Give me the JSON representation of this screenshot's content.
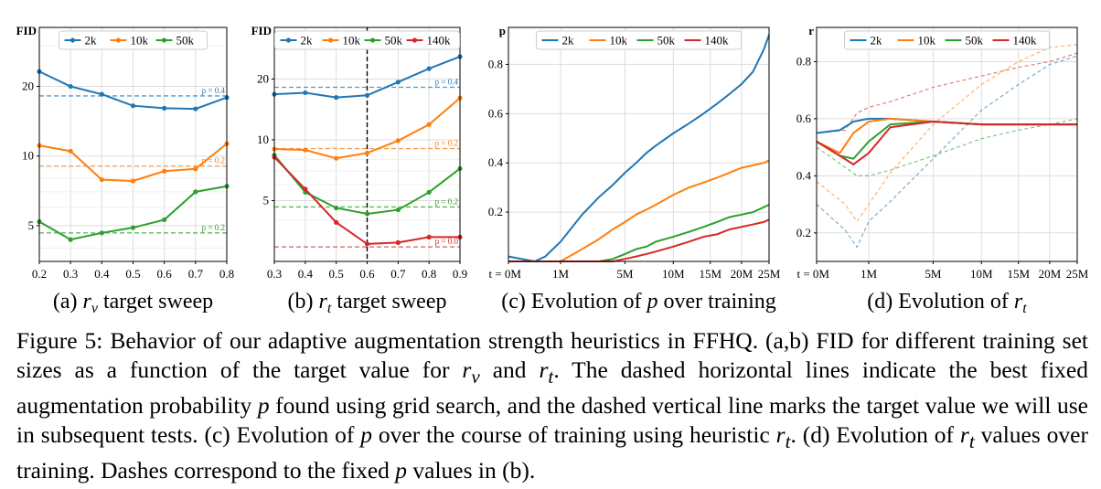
{
  "colors": {
    "2k": "#1f77b4",
    "10k": "#ff7f0e",
    "50k": "#2ca02c",
    "140k": "#d62728",
    "grid": "#dddddd",
    "axis": "#000000"
  },
  "chart_data": [
    {
      "id": "a",
      "type": "line",
      "title": "",
      "ylabel": "FID",
      "xlabel": "",
      "x": [
        0.2,
        0.3,
        0.4,
        0.5,
        0.6,
        0.7,
        0.8
      ],
      "x_ticks": [
        "0.2",
        "0.3",
        "0.4",
        "0.5",
        "0.6",
        "0.7",
        "0.8"
      ],
      "xlim": [
        0.2,
        0.8
      ],
      "yscale": "log",
      "ylim": [
        3.5,
        36
      ],
      "y_ticks": [
        "5",
        "10",
        "20"
      ],
      "y_tick_values": [
        5,
        10,
        20
      ],
      "legend": "top-center",
      "grid": true,
      "series": [
        {
          "name": "2k",
          "values": [
            23.2,
            20.0,
            18.5,
            16.5,
            16.1,
            16.0,
            17.9
          ]
        },
        {
          "name": "10k",
          "values": [
            11.1,
            10.5,
            7.9,
            7.8,
            8.6,
            8.8,
            11.3
          ]
        },
        {
          "name": "50k",
          "values": [
            5.2,
            4.35,
            4.65,
            4.9,
            5.3,
            7.0,
            7.4
          ]
        }
      ],
      "reference_lines": [
        {
          "series": "2k",
          "value": 18.2,
          "label": "p = 0.4"
        },
        {
          "series": "10k",
          "value": 9.05,
          "label": "p = 0.2"
        },
        {
          "series": "50k",
          "value": 4.65,
          "label": "p = 0.2"
        }
      ],
      "caption_prefix": "(a) ",
      "caption_var": "r",
      "caption_sub": "v",
      "caption_suffix": " target sweep"
    },
    {
      "id": "b",
      "type": "line",
      "title": "",
      "ylabel": "FID",
      "xlabel": "",
      "x": [
        0.3,
        0.4,
        0.5,
        0.6,
        0.7,
        0.8,
        0.9
      ],
      "x_ticks": [
        "0.3",
        "0.4",
        "0.5",
        "0.6",
        "0.7",
        "0.8",
        "0.9"
      ],
      "xlim": [
        0.3,
        0.9
      ],
      "yscale": "log",
      "ylim": [
        2.5,
        36
      ],
      "y_ticks": [
        "5",
        "10",
        "20"
      ],
      "y_tick_values": [
        5,
        10,
        20
      ],
      "legend": "top-center",
      "grid": true,
      "vertical_line": 0.6,
      "series": [
        {
          "name": "2k",
          "values": [
            16.8,
            17.1,
            16.2,
            16.6,
            19.3,
            22.5,
            25.8
          ]
        },
        {
          "name": "10k",
          "values": [
            9.0,
            8.9,
            8.1,
            8.6,
            9.9,
            11.9,
            16.1
          ]
        },
        {
          "name": "50k",
          "values": [
            8.4,
            5.5,
            4.6,
            4.3,
            4.5,
            5.5,
            7.2
          ]
        },
        {
          "name": "140k",
          "values": [
            8.2,
            5.7,
            3.9,
            3.05,
            3.1,
            3.3,
            3.3
          ]
        }
      ],
      "reference_lines": [
        {
          "series": "2k",
          "value": 18.2,
          "label": "p = 0.4"
        },
        {
          "series": "10k",
          "value": 9.05,
          "label": "p = 0.2"
        },
        {
          "series": "50k",
          "value": 4.65,
          "label": "p = 0.2"
        },
        {
          "series": "140k",
          "value": 2.95,
          "label": "p = 0.0"
        }
      ],
      "caption_prefix": "(b) ",
      "caption_var": "r",
      "caption_sub": "t",
      "caption_suffix": " target sweep"
    },
    {
      "id": "c",
      "type": "line",
      "title": "",
      "ylabel": "p",
      "xlabel": "",
      "xscale": "sqrt",
      "xlim": [
        0,
        25
      ],
      "x_ticks": [
        "t = 0M",
        "1M",
        "5M",
        "10M",
        "15M",
        "20M",
        "25M"
      ],
      "x_tick_values": [
        0,
        1,
        5,
        10,
        15,
        20,
        25
      ],
      "ylim": [
        0,
        0.95
      ],
      "y_ticks": [
        "0.2",
        "0.4",
        "0.6",
        "0.8"
      ],
      "y_tick_values": [
        0.2,
        0.4,
        0.6,
        0.8
      ],
      "legend": "top-center",
      "grid": true,
      "series": [
        {
          "name": "2k",
          "x": [
            0,
            0.25,
            0.5,
            1,
            2,
            3,
            4,
            5,
            6,
            7,
            8,
            10,
            12,
            14,
            16,
            18,
            20,
            22,
            24,
            25
          ],
          "values": [
            0.02,
            0.0,
            0.02,
            0.08,
            0.19,
            0.26,
            0.31,
            0.36,
            0.4,
            0.44,
            0.47,
            0.52,
            0.56,
            0.6,
            0.64,
            0.68,
            0.72,
            0.77,
            0.86,
            0.92
          ]
        },
        {
          "name": "10k",
          "x": [
            0,
            0.5,
            1,
            2,
            3,
            4,
            5,
            6,
            7,
            8,
            10,
            12,
            14,
            16,
            18,
            20,
            22,
            24,
            25
          ],
          "values": [
            0.0,
            0.0,
            0.0,
            0.05,
            0.09,
            0.13,
            0.16,
            0.19,
            0.21,
            0.23,
            0.27,
            0.3,
            0.32,
            0.34,
            0.36,
            0.38,
            0.39,
            0.4,
            0.41
          ]
        },
        {
          "name": "50k",
          "x": [
            0,
            1,
            2,
            3,
            4,
            5,
            6,
            7,
            8,
            10,
            12,
            14,
            16,
            18,
            20,
            22,
            24,
            25
          ],
          "values": [
            0.0,
            0.0,
            0.0,
            0.0,
            0.01,
            0.03,
            0.05,
            0.06,
            0.08,
            0.1,
            0.12,
            0.14,
            0.16,
            0.18,
            0.19,
            0.2,
            0.22,
            0.23
          ]
        },
        {
          "name": "140k",
          "x": [
            0,
            1,
            2,
            3,
            4,
            5,
            6,
            7,
            8,
            10,
            12,
            14,
            16,
            18,
            20,
            22,
            24,
            25
          ],
          "values": [
            0.0,
            0.0,
            0.0,
            0.0,
            0.0,
            0.01,
            0.02,
            0.03,
            0.04,
            0.06,
            0.08,
            0.1,
            0.11,
            0.13,
            0.14,
            0.15,
            0.16,
            0.17
          ]
        }
      ],
      "caption_prefix": "(c) Evolution of ",
      "caption_var": "p",
      "caption_sub": "",
      "caption_suffix": " over training"
    },
    {
      "id": "d",
      "type": "line",
      "title": "",
      "ylabel": "r",
      "xlabel": "",
      "xscale": "sqrt",
      "xlim": [
        0,
        25
      ],
      "x_ticks": [
        "t = 0M",
        "1M",
        "5M",
        "10M",
        "15M",
        "20M",
        "25M"
      ],
      "x_tick_values": [
        0,
        1,
        5,
        10,
        15,
        20,
        25
      ],
      "ylim": [
        0.1,
        0.92
      ],
      "y_ticks": [
        "0.2",
        "0.4",
        "0.6",
        "0.8"
      ],
      "y_tick_values": [
        0.2,
        0.4,
        0.6,
        0.8
      ],
      "legend": "top-center",
      "grid": true,
      "series": [
        {
          "name": "2k",
          "x": [
            0,
            0.2,
            0.5,
            1,
            2,
            5,
            10,
            15,
            20,
            25
          ],
          "values": [
            0.55,
            0.56,
            0.59,
            0.6,
            0.6,
            0.59,
            0.58,
            0.58,
            0.58,
            0.58
          ]
        },
        {
          "name": "10k",
          "x": [
            0,
            0.2,
            0.5,
            1,
            2,
            5,
            10,
            15,
            20,
            25
          ],
          "values": [
            0.52,
            0.48,
            0.55,
            0.59,
            0.6,
            0.59,
            0.58,
            0.58,
            0.58,
            0.58
          ]
        },
        {
          "name": "50k",
          "x": [
            0,
            0.2,
            0.5,
            1,
            2,
            5,
            10,
            15,
            20,
            25
          ],
          "values": [
            0.52,
            0.47,
            0.46,
            0.52,
            0.58,
            0.59,
            0.58,
            0.58,
            0.58,
            0.58
          ]
        },
        {
          "name": "140k",
          "x": [
            0,
            0.2,
            0.5,
            1,
            2,
            5,
            10,
            15,
            20,
            25
          ],
          "values": [
            0.52,
            0.47,
            0.44,
            0.48,
            0.57,
            0.59,
            0.58,
            0.58,
            0.58,
            0.58
          ]
        }
      ],
      "dashed_series": [
        {
          "name": "2k",
          "x": [
            0,
            0.3,
            0.6,
            1,
            2,
            5,
            10,
            15,
            20,
            25
          ],
          "values": [
            0.3,
            0.21,
            0.15,
            0.24,
            0.31,
            0.46,
            0.63,
            0.72,
            0.79,
            0.82
          ]
        },
        {
          "name": "10k",
          "x": [
            0,
            0.3,
            0.6,
            1,
            2,
            5,
            10,
            15,
            20,
            25
          ],
          "values": [
            0.38,
            0.3,
            0.24,
            0.3,
            0.41,
            0.58,
            0.72,
            0.8,
            0.85,
            0.86
          ]
        },
        {
          "name": "50k",
          "x": [
            0,
            0.3,
            0.6,
            1,
            2,
            5,
            10,
            15,
            20,
            25
          ],
          "values": [
            0.5,
            0.43,
            0.4,
            0.4,
            0.42,
            0.47,
            0.53,
            0.56,
            0.58,
            0.6
          ]
        },
        {
          "name": "140k",
          "x": [
            0,
            0.3,
            0.6,
            1,
            2,
            5,
            10,
            15,
            20,
            25
          ],
          "values": [
            0.55,
            0.56,
            0.62,
            0.64,
            0.66,
            0.71,
            0.75,
            0.78,
            0.8,
            0.83
          ]
        }
      ],
      "caption_prefix": "(d) Evolution of ",
      "caption_var": "r",
      "caption_sub": "t",
      "caption_suffix": ""
    }
  ],
  "figure_caption": {
    "label": "Figure 5:",
    "seg1": "Behavior of our adaptive augmentation strength heuristics in FFHQ. (a,b) FID for different training set sizes as a function of the target value for ",
    "seg2": " and ",
    "seg3": ". The dashed horizontal lines indicate the best fixed augmentation probability ",
    "seg4": " found using grid search, and the dashed vertical line marks the target value we will use in subsequent tests. (c) Evolution of ",
    "seg5": " over the course of training using heuristic ",
    "seg6": ". (d) Evolution of ",
    "seg7": " values over training. Dashes correspond to the fixed ",
    "seg8": " values in (b).",
    "var_r": "r",
    "sub_v": "v",
    "sub_t": "t",
    "var_p": "p"
  }
}
